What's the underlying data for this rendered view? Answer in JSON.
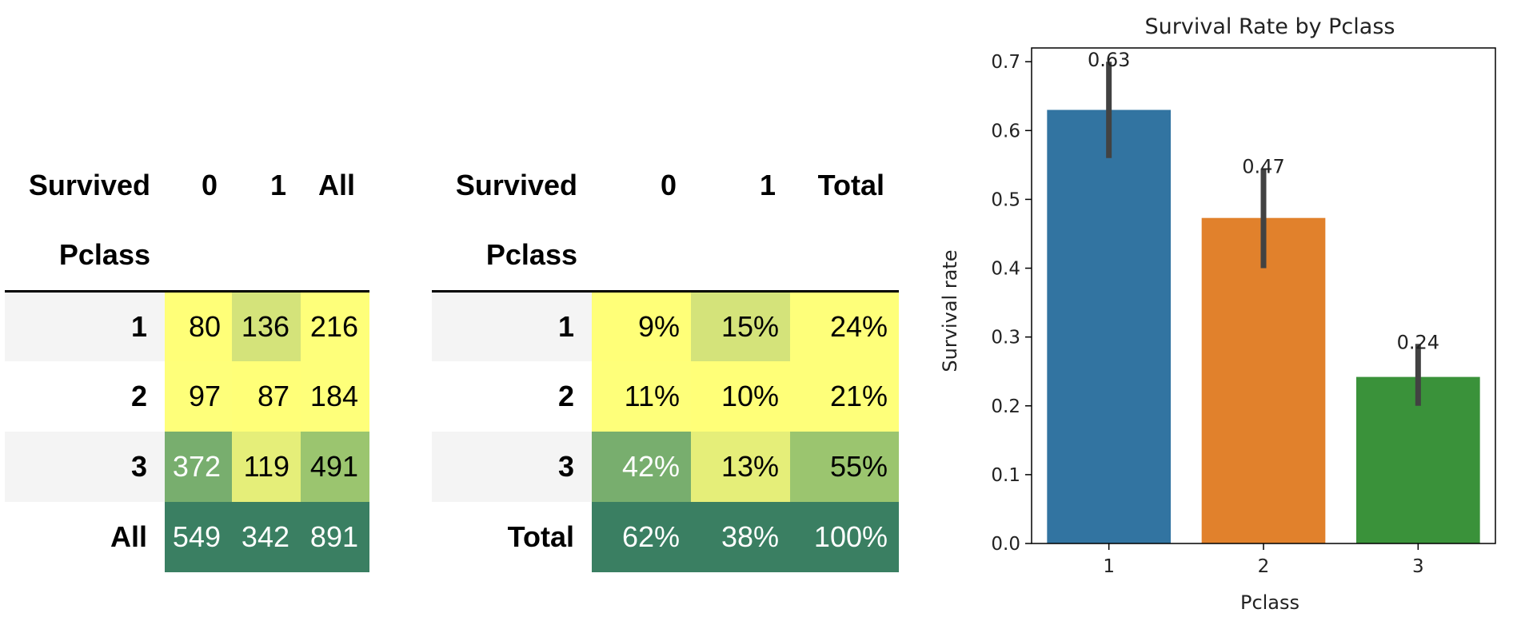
{
  "table1": {
    "index_label": "Survived",
    "row_label": "Pclass",
    "columns": [
      "0",
      "1",
      "All"
    ],
    "rows": [
      {
        "label": "1",
        "cells": [
          "80",
          "136",
          "216"
        ],
        "colors": [
          "#ffff78",
          "#d4e37a",
          "#feff7a"
        ]
      },
      {
        "label": "2",
        "cells": [
          "97",
          "87",
          "184"
        ],
        "colors": [
          "#feff7a",
          "#ffff78",
          "#feff7a"
        ]
      },
      {
        "label": "3",
        "cells": [
          "372",
          "119",
          "491"
        ],
        "colors": [
          "#78ae6e",
          "#e5ee79",
          "#9bc56f"
        ]
      },
      {
        "label": "All",
        "cells": [
          "549",
          "342",
          "891"
        ],
        "colors": [
          "#3a7f62",
          "#3a7f62",
          "#3a7f62"
        ]
      }
    ]
  },
  "table2": {
    "index_label": "Survived",
    "row_label": "Pclass",
    "columns": [
      "0",
      "1",
      "Total"
    ],
    "rows": [
      {
        "label": "1",
        "cells": [
          "9%",
          "15%",
          "24%"
        ],
        "colors": [
          "#ffff78",
          "#d4e37a",
          "#feff7a"
        ]
      },
      {
        "label": "2",
        "cells": [
          "11%",
          "10%",
          "21%"
        ],
        "colors": [
          "#feff7a",
          "#ffff78",
          "#feff7a"
        ]
      },
      {
        "label": "3",
        "cells": [
          "42%",
          "13%",
          "55%"
        ],
        "colors": [
          "#78ae6e",
          "#e5ee79",
          "#9bc56f"
        ]
      },
      {
        "label": "Total",
        "cells": [
          "62%",
          "38%",
          "100%"
        ],
        "colors": [
          "#3a7f62",
          "#3a7f62",
          "#3a7f62"
        ]
      }
    ]
  },
  "chart_data": {
    "type": "bar",
    "title": "Survival Rate by Pclass",
    "xlabel": "Pclass",
    "ylabel": "Survival rate",
    "categories": [
      "1",
      "2",
      "3"
    ],
    "values": [
      0.63,
      0.473,
      0.242
    ],
    "value_labels": [
      "0.63",
      "0.47",
      "0.24"
    ],
    "error_low": [
      0.56,
      0.4,
      0.2
    ],
    "error_high": [
      0.7,
      0.545,
      0.29
    ],
    "colors": [
      "#3274a1",
      "#e1812c",
      "#3a923a"
    ],
    "ylim": [
      0,
      0.72
    ],
    "yticks": [
      0.0,
      0.1,
      0.2,
      0.3,
      0.4,
      0.5,
      0.6,
      0.7
    ],
    "grid": false
  }
}
